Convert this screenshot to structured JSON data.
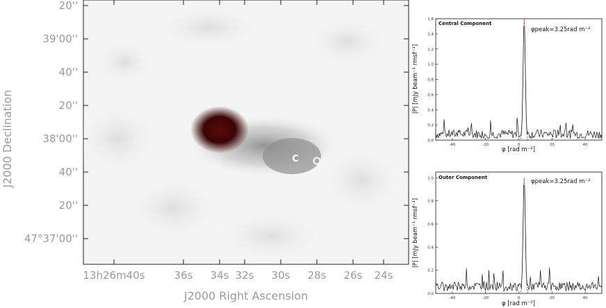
{
  "main_map": {
    "xlabel": "J2000 Right Ascension",
    "ylabel": "J2000 Declination",
    "yticks": [
      "20''",
      "39'00''",
      "40''",
      "20''",
      "38'00''",
      "40''",
      "20''",
      "47°37'00''"
    ],
    "xticks": [
      "13h26m40s",
      "36s",
      "34s",
      "32s",
      "30s",
      "28s",
      "26s",
      "24s"
    ],
    "markers": {
      "c_label": "C",
      "o_label": "O"
    },
    "contour_color": "#e03a3a",
    "lobe_color": "#5a0a0a"
  },
  "chart_data": [
    {
      "type": "line",
      "title": "Central Component",
      "annotation": "φpeak=3.25rad m⁻²",
      "xlabel": "φ [rad m⁻²]",
      "ylabel": "|P| [mJy beam⁻¹ rmsf⁻¹]",
      "xlim": [
        -50,
        50
      ],
      "ylim": [
        0,
        1.6
      ],
      "xticks": [
        -40,
        -20,
        0,
        20,
        40
      ],
      "yticks": [
        0.0,
        0.2,
        0.4,
        0.6,
        0.8,
        1.0,
        1.2,
        1.4,
        1.6
      ],
      "peak": {
        "x": 3.25,
        "y": 1.6
      },
      "series_color": "#111111",
      "fit_color": "#d02020"
    },
    {
      "type": "line",
      "title": "Outer Component",
      "annotation": "φpeak=3.25rad m⁻²",
      "xlabel": "φ [rad m⁻²]",
      "ylabel": "|P| [mJy beam⁻¹ rmsf⁻¹]",
      "xlim": [
        -50,
        50
      ],
      "ylim": [
        0,
        1.05
      ],
      "xticks": [
        -40,
        -20,
        0,
        20,
        40
      ],
      "yticks": [
        0.0,
        0.2,
        0.4,
        0.6,
        0.8,
        1.0
      ],
      "peak": {
        "x": 3.25,
        "y": 1.0
      },
      "series_color": "#111111",
      "fit_color": "#d02020"
    }
  ]
}
